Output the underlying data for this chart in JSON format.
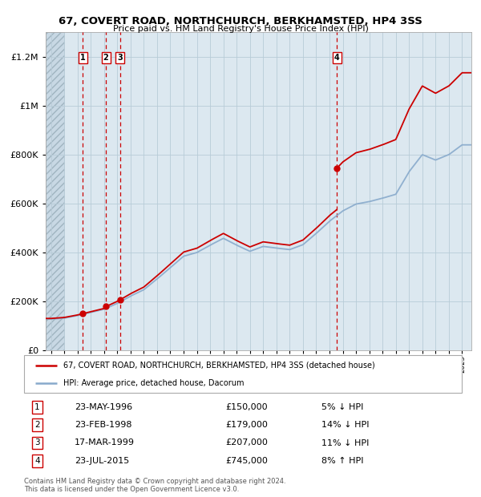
{
  "title": "67, COVERT ROAD, NORTHCHURCH, BERKHAMSTED, HP4 3SS",
  "subtitle": "Price paid vs. HM Land Registry's House Price Index (HPI)",
  "legend_label_red": "67, COVERT ROAD, NORTHCHURCH, BERKHAMSTED, HP4 3SS (detached house)",
  "legend_label_blue": "HPI: Average price, detached house, Dacorum",
  "footer1": "Contains HM Land Registry data © Crown copyright and database right 2024.",
  "footer2": "This data is licensed under the Open Government Licence v3.0.",
  "sales": [
    {
      "num": 1,
      "date": "23-MAY-1996",
      "date_val": 1996.39,
      "price": 150000,
      "pct": "5% ↓ HPI"
    },
    {
      "num": 2,
      "date": "23-FEB-1998",
      "date_val": 1998.14,
      "price": 179000,
      "pct": "14% ↓ HPI"
    },
    {
      "num": 3,
      "date": "17-MAR-1999",
      "date_val": 1999.21,
      "price": 207000,
      "pct": "11% ↓ HPI"
    },
    {
      "num": 4,
      "date": "23-JUL-2015",
      "date_val": 2015.56,
      "price": 745000,
      "pct": "8% ↑ HPI"
    }
  ],
  "hpi_years": [
    1994,
    1995,
    1996,
    1997,
    1998,
    1999,
    2000,
    2001,
    2002,
    2003,
    2004,
    2005,
    2006,
    2007,
    2008,
    2009,
    2010,
    2011,
    2012,
    2013,
    2014,
    2015,
    2016,
    2017,
    2018,
    2019,
    2020,
    2021,
    2022,
    2023,
    2024,
    2025
  ],
  "hpi_prices": [
    128000,
    132000,
    142000,
    155000,
    168000,
    192000,
    222000,
    248000,
    292000,
    338000,
    385000,
    400000,
    430000,
    458000,
    430000,
    405000,
    425000,
    418000,
    412000,
    432000,
    478000,
    528000,
    570000,
    598000,
    608000,
    622000,
    638000,
    730000,
    800000,
    778000,
    800000,
    840000
  ],
  "ylim": [
    0,
    1300000
  ],
  "yticks": [
    0,
    200000,
    400000,
    600000,
    800000,
    1000000,
    1200000
  ],
  "ylabels": [
    "£0",
    "£200K",
    "£400K",
    "£600K",
    "£800K",
    "£1M",
    "£1.2M"
  ],
  "xlim_start": 1993.6,
  "xlim_end": 2025.7,
  "hatch_end": 1995.0,
  "background_color": "#dce8f0",
  "hatch_facecolor": "#c8d8e4",
  "grid_color": "#b8ccd8",
  "red_color": "#cc0000",
  "blue_color": "#88aacc",
  "sale_number_box_color": "#cc0000"
}
